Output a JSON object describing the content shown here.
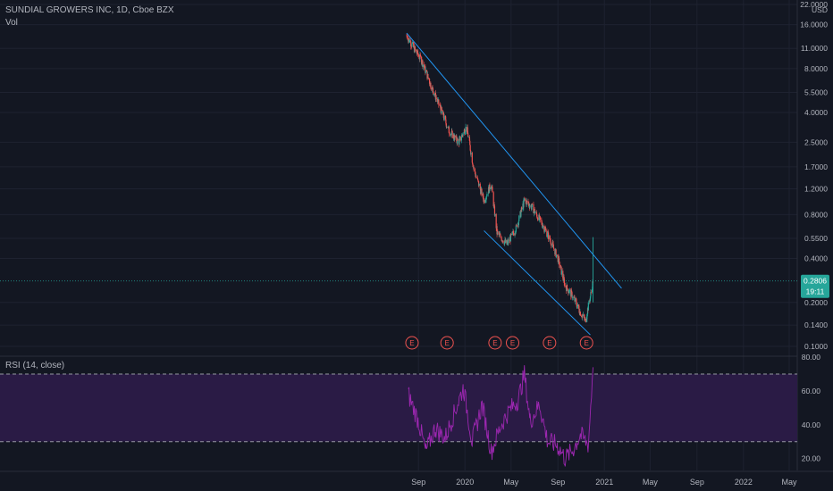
{
  "header": {
    "symbol_line": "SUNDIAL GROWERS INC, 1D, Cboe BZX",
    "volume_label": "Vol",
    "currency": "USD"
  },
  "rsi_panel": {
    "label": "RSI (14, close)",
    "ticks": [
      "80.00",
      "60.00",
      "40.00",
      "20.00"
    ]
  },
  "price_axis": {
    "ticks": [
      "22.0000",
      "16.0000",
      "11.0000",
      "8.0000",
      "5.5000",
      "4.0000",
      "2.5000",
      "1.7000",
      "1.2000",
      "0.8000",
      "0.5500",
      "0.4000",
      "0.2000",
      "0.1400",
      "0.1000"
    ],
    "current_price": "0.2806",
    "countdown": "19:11"
  },
  "time_axis": {
    "ticks": [
      "Sep",
      "2020",
      "May",
      "Sep",
      "2021",
      "May",
      "Sep",
      "2022",
      "May"
    ]
  },
  "earnings_markers": [
    "E",
    "E",
    "E",
    "E",
    "E",
    "E"
  ],
  "colors": {
    "background": "#131722",
    "up": "#26a69a",
    "down": "#ef5350",
    "trendline": "#2196f3",
    "rsi_line": "#9c27b0",
    "rsi_band": "#2a1b45",
    "price_tag": "#26a69a",
    "grid": "#1e2230"
  },
  "chart_data": {
    "type": "candlestick",
    "scale": "log",
    "ylim": [
      0.1,
      22
    ],
    "price_path": [
      [
        "2019-08-01",
        13.5
      ],
      [
        "2019-08-20",
        11.0
      ],
      [
        "2019-09-10",
        9.0
      ],
      [
        "2019-10-05",
        6.0
      ],
      [
        "2019-10-25",
        4.5
      ],
      [
        "2019-11-20",
        3.0
      ],
      [
        "2019-12-15",
        2.5
      ],
      [
        "2020-01-05",
        3.2
      ],
      [
        "2020-01-25",
        1.6
      ],
      [
        "2020-02-20",
        1.0
      ],
      [
        "2020-03-10",
        1.3
      ],
      [
        "2020-03-25",
        0.6
      ],
      [
        "2020-04-20",
        0.5
      ],
      [
        "2020-05-15",
        0.65
      ],
      [
        "2020-06-05",
        1.0
      ],
      [
        "2020-06-25",
        0.9
      ],
      [
        "2020-07-20",
        0.7
      ],
      [
        "2020-08-10",
        0.55
      ],
      [
        "2020-09-01",
        0.4
      ],
      [
        "2020-09-20",
        0.26
      ],
      [
        "2020-10-10",
        0.22
      ],
      [
        "2020-10-30",
        0.17
      ],
      [
        "2020-11-12",
        0.15
      ],
      [
        "2020-11-25",
        0.22
      ],
      [
        "2020-12-02",
        0.28
      ]
    ],
    "trendlines": [
      {
        "from": [
          "2019-08-01",
          14.0
        ],
        "to": [
          "2021-02-15",
          0.25
        ]
      },
      {
        "from": [
          "2020-02-20",
          0.62
        ],
        "to": [
          "2020-11-25",
          0.12
        ]
      }
    ],
    "earnings_dates": [
      "2019-08-15",
      "2019-11-15",
      "2020-03-20",
      "2020-05-05",
      "2020-08-10",
      "2020-11-15"
    ],
    "rsi": {
      "ylim": [
        14,
        80
      ],
      "overbought": 70,
      "oversold": 30,
      "values": [
        [
          "2019-08-05",
          58
        ],
        [
          "2019-09-01",
          42
        ],
        [
          "2019-09-20",
          24
        ],
        [
          "2019-10-15",
          38
        ],
        [
          "2019-11-10",
          32
        ],
        [
          "2019-12-01",
          45
        ],
        [
          "2019-12-28",
          62
        ],
        [
          "2020-01-20",
          30
        ],
        [
          "2020-02-15",
          52
        ],
        [
          "2020-03-10",
          24
        ],
        [
          "2020-04-05",
          40
        ],
        [
          "2020-04-25",
          48
        ],
        [
          "2020-05-20",
          55
        ],
        [
          "2020-06-05",
          70
        ],
        [
          "2020-06-20",
          42
        ],
        [
          "2020-07-15",
          52
        ],
        [
          "2020-08-05",
          30
        ],
        [
          "2020-08-30",
          28
        ],
        [
          "2020-09-20",
          20
        ],
        [
          "2020-10-10",
          25
        ],
        [
          "2020-10-30",
          34
        ],
        [
          "2020-11-20",
          28
        ],
        [
          "2020-12-02",
          74
        ]
      ]
    }
  }
}
